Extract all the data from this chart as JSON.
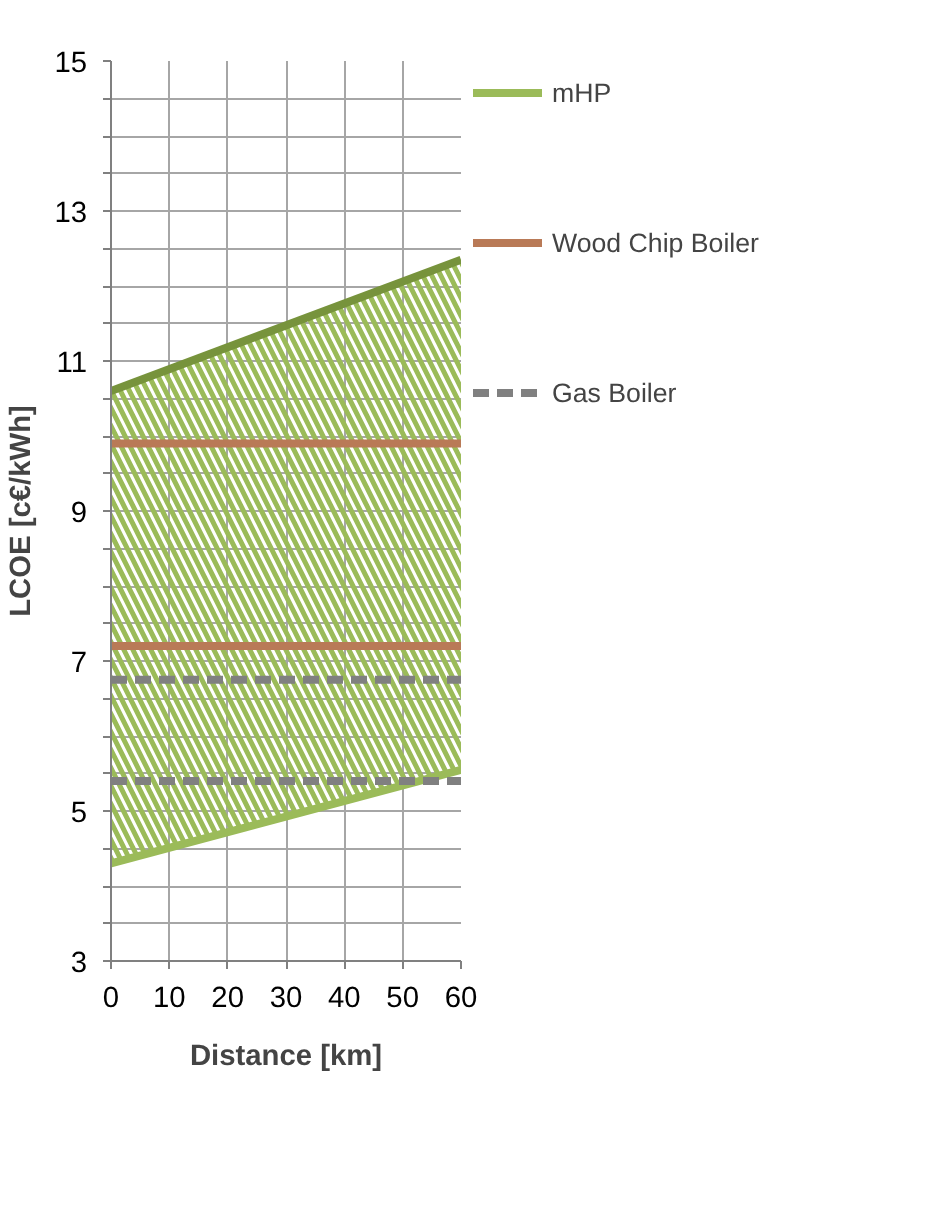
{
  "chart_data": {
    "type": "line",
    "xlabel": "Distance [km]",
    "ylabel": "LCOE [c€/kWh]",
    "x": [
      0,
      60
    ],
    "xlim": [
      0,
      60
    ],
    "xticks": [
      0,
      10,
      20,
      30,
      40,
      50,
      60
    ],
    "ylim": [
      3,
      15
    ],
    "yticks": [
      3,
      {
        "value": 3.5,
        "label": null
      },
      {
        "value": 4,
        "label": null
      },
      {
        "value": 4.5,
        "label": null
      },
      5,
      {
        "value": 5.5,
        "label": null
      },
      {
        "value": 6,
        "label": null
      },
      {
        "value": 6.5,
        "label": null
      },
      7,
      {
        "value": 7.5,
        "label": null
      },
      {
        "value": 8,
        "label": null
      },
      {
        "value": 8.5,
        "label": null
      },
      9,
      {
        "value": 9.5,
        "label": null
      },
      {
        "value": 10,
        "label": null
      },
      {
        "value": 10.5,
        "label": null
      },
      11,
      {
        "value": 11.5,
        "label": null
      },
      {
        "value": 12,
        "label": null
      },
      {
        "value": 12.5,
        "label": null
      },
      13,
      {
        "value": 13.5,
        "label": null
      },
      {
        "value": 14,
        "label": null
      },
      {
        "value": 14.5,
        "label": null
      },
      15
    ],
    "grid": true,
    "legend": "right",
    "marker": "none",
    "series": [
      {
        "name": "mHP",
        "color": "#9bbb59",
        "values": [
          4.3,
          5.55
        ],
        "line_style": "solid"
      },
      {
        "color": "#77933c",
        "values": [
          10.6,
          12.35
        ],
        "lower": [
          4.3,
          5.55
        ],
        "upper": [
          10.6,
          12.35
        ],
        "line_style": "solid"
      },
      {
        "name": "Wood Chip Boiler",
        "color": "#b97a57",
        "values": [
          9.9,
          9.9
        ],
        "line_style": "solid"
      },
      {
        "color": "#b97a57",
        "values": [
          7.2,
          7.2
        ],
        "line_style": "solid"
      },
      {
        "name": "Gas Boiler",
        "color": "#808080",
        "values": [
          6.75,
          6.75
        ],
        "line_style": "dashed"
      },
      {
        "color": "#808080",
        "values": [
          5.4,
          5.4
        ],
        "line_style": "dashed"
      }
    ]
  }
}
